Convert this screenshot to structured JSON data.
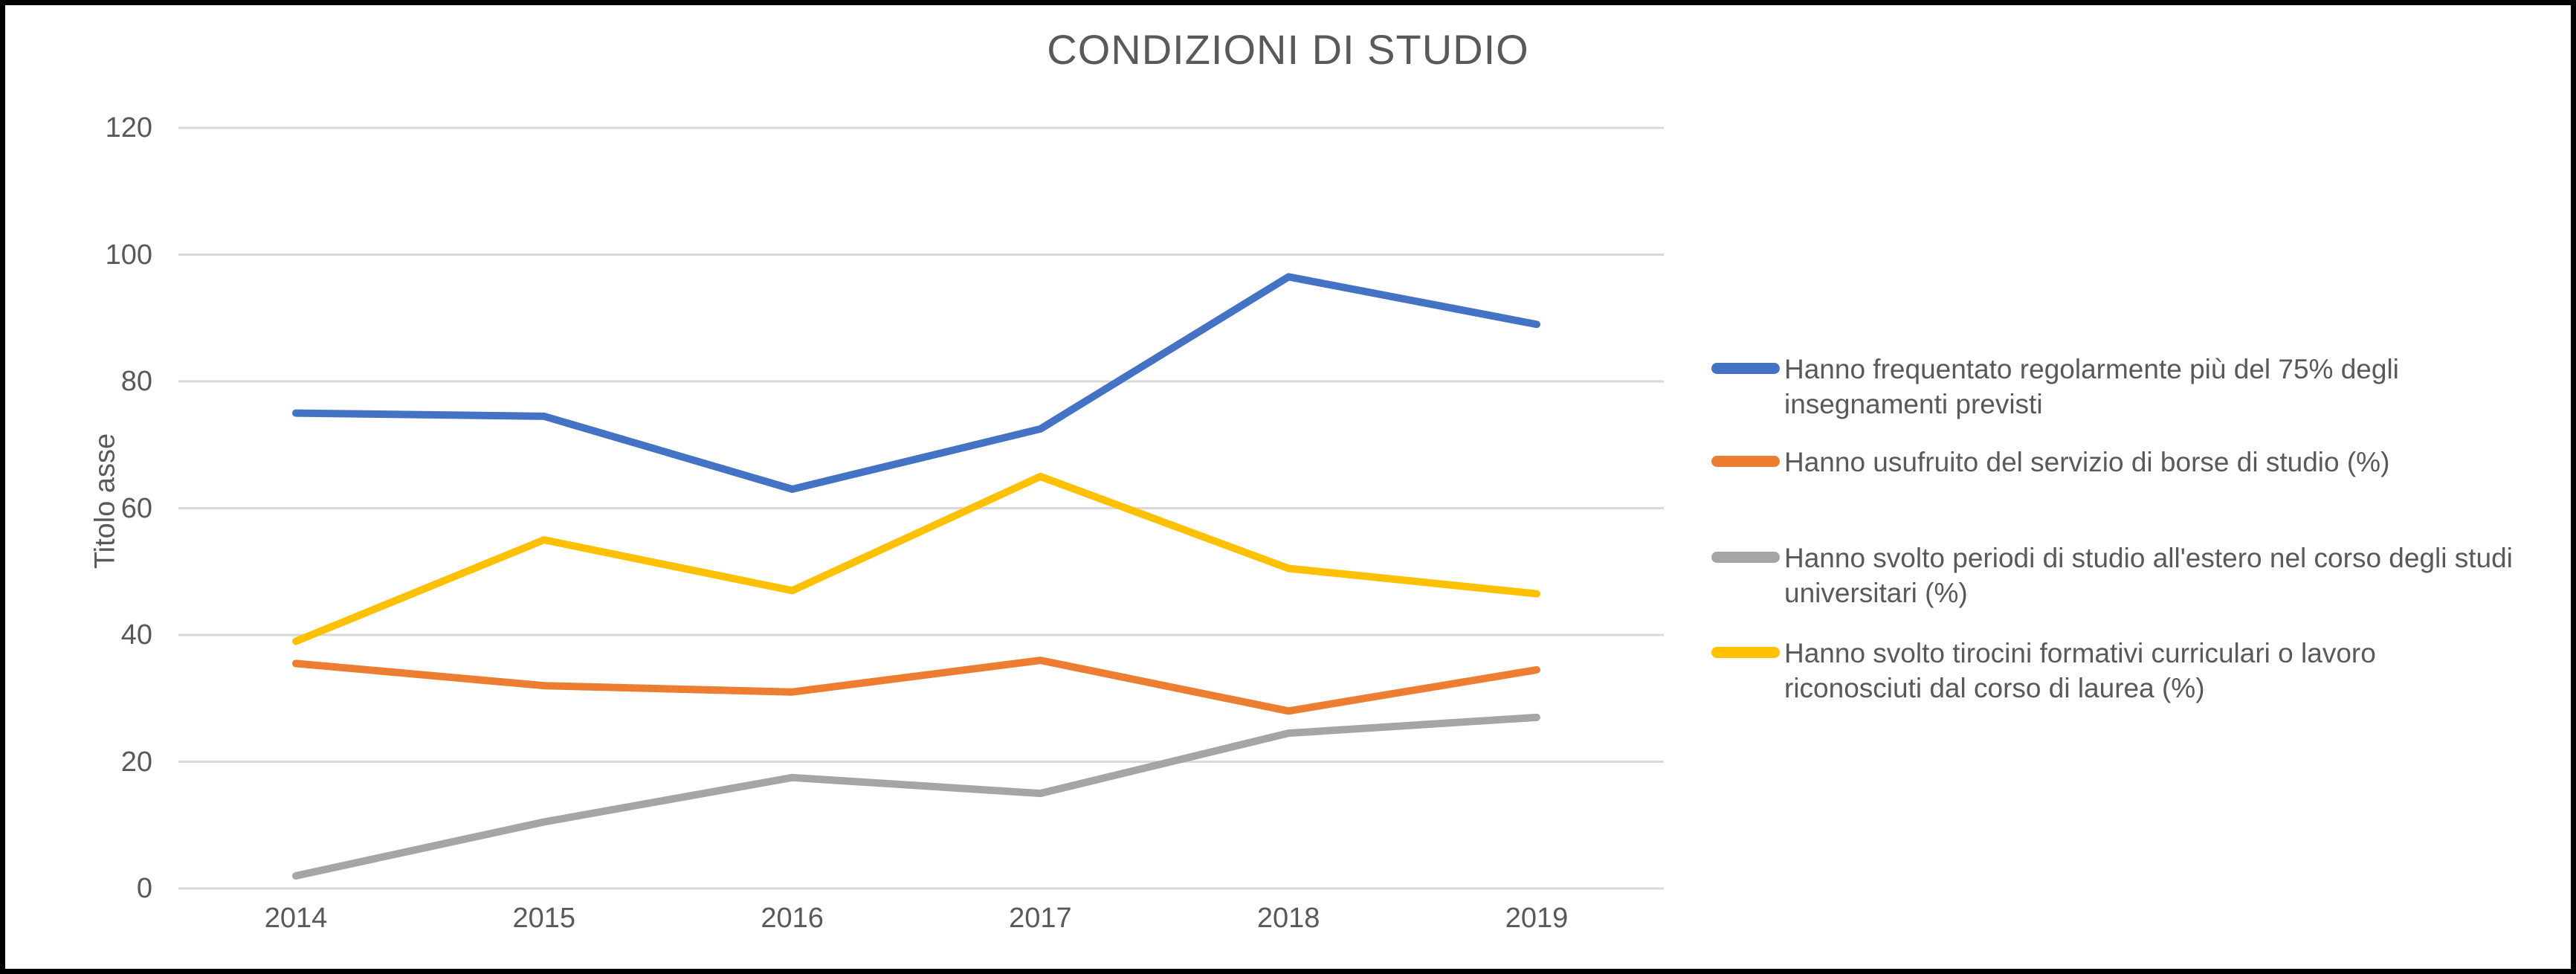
{
  "chart_data": {
    "type": "line",
    "title": "CONDIZIONI DI STUDIO",
    "xlabel": "",
    "ylabel": "Titolo asse",
    "categories": [
      "2014",
      "2015",
      "2016",
      "2017",
      "2018",
      "2019"
    ],
    "y_ticks": [
      0,
      20,
      40,
      60,
      80,
      100,
      120
    ],
    "ylim": [
      0,
      120
    ],
    "grid": true,
    "legend_position": "right",
    "text_color": "#595959",
    "gridline_color": "#D9D9D9",
    "series": [
      {
        "name": "Hanno frequentato regolarmente più del 75% degli insegnamenti previsti",
        "name_lines": [
          "Hanno frequentato regolarmente più del 75% degli",
          "insegnamenti previsti"
        ],
        "color": "#4472C4",
        "values": [
          75,
          74.5,
          63,
          72.5,
          96.5,
          89
        ]
      },
      {
        "name": "Hanno usufruito del servizio di borse di studio (%)",
        "name_lines": [
          "Hanno usufruito del servizio di borse di studio (%)"
        ],
        "color": "#ED7D31",
        "values": [
          35.5,
          32,
          31,
          36,
          28,
          34.5
        ]
      },
      {
        "name": "Hanno svolto periodi di studio all'estero nel corso degli studi universitari (%)",
        "name_lines": [
          "Hanno svolto periodi di studio all'estero nel corso degli studi",
          "universitari (%)"
        ],
        "color": "#A5A5A5",
        "values": [
          2,
          10.5,
          17.5,
          15,
          24.5,
          27
        ]
      },
      {
        "name": "Hanno svolto tirocini formativi curriculari o lavoro riconosciuti dal corso di laurea (%)",
        "name_lines": [
          "Hanno svolto tirocini formativi curriculari o lavoro",
          "riconosciuti dal corso di laurea (%)"
        ],
        "color": "#FFC000",
        "values": [
          39,
          55,
          47,
          65,
          50.5,
          46.5
        ]
      }
    ]
  }
}
